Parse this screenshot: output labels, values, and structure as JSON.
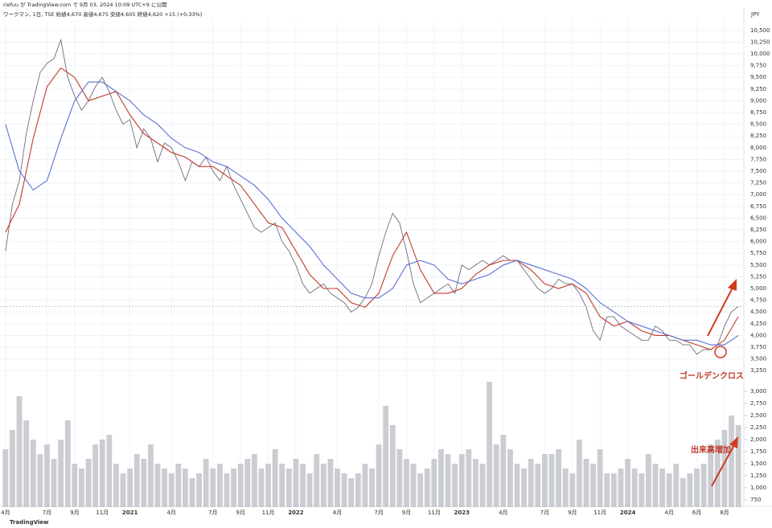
{
  "chart_data": {
    "type": "line",
    "header": "riefuu が TradingView.com で 9月 03, 2024 10:09 UTC+9 に公開",
    "title": "ワークマン, 1日, TSE  始値4,670 高値4,675 安値4,605 終値4,620 +15 (+0.33%)",
    "currency": "JPY",
    "footer": "TradingView",
    "annotations": [
      "ゴールデンクロス",
      "出来高増加"
    ],
    "grid": true,
    "xlim": [
      2.6,
      56.4
    ],
    "xticks": [
      {
        "value": 3,
        "label": "4月"
      },
      {
        "value": 6,
        "label": "7月"
      },
      {
        "value": 8,
        "label": "9月"
      },
      {
        "value": 10,
        "label": "11月"
      },
      {
        "value": 12,
        "label": "2021"
      },
      {
        "value": 15,
        "label": "4月"
      },
      {
        "value": 18,
        "label": "7月"
      },
      {
        "value": 20,
        "label": "9月"
      },
      {
        "value": 22,
        "label": "11月"
      },
      {
        "value": 24,
        "label": "2022"
      },
      {
        "value": 27,
        "label": "4月"
      },
      {
        "value": 30,
        "label": "7月"
      },
      {
        "value": 32,
        "label": "9月"
      },
      {
        "value": 34,
        "label": "11月"
      },
      {
        "value": 36,
        "label": "2023"
      },
      {
        "value": 39,
        "label": "4月"
      },
      {
        "value": 42,
        "label": "7月"
      },
      {
        "value": 44,
        "label": "9月"
      },
      {
        "value": 46,
        "label": "11月"
      },
      {
        "value": 48,
        "label": "2024"
      },
      {
        "value": 51,
        "label": "4月"
      },
      {
        "value": 53,
        "label": "6月"
      },
      {
        "value": 55,
        "label": "8月"
      }
    ],
    "ylim": [
      3100,
      10720
    ],
    "yticks": [
      {
        "value": 3250,
        "label": "3,250"
      },
      {
        "value": 3500,
        "label": "3,500"
      },
      {
        "value": 3750,
        "label": "3,750"
      },
      {
        "value": 4000,
        "label": "4,000"
      },
      {
        "value": 4250,
        "label": "4,250"
      },
      {
        "value": 4500,
        "label": "4,500"
      },
      {
        "value": 4750,
        "label": "4,750"
      },
      {
        "value": 5000,
        "label": "5,000"
      },
      {
        "value": 5250,
        "label": "5,250"
      },
      {
        "value": 5500,
        "label": "5,500"
      },
      {
        "value": 5750,
        "label": "5,750"
      },
      {
        "value": 6000,
        "label": "6,000"
      },
      {
        "value": 6250,
        "label": "6,250"
      },
      {
        "value": 6500,
        "label": "6,500"
      },
      {
        "value": 6750,
        "label": "6,750"
      },
      {
        "value": 7000,
        "label": "7,000"
      },
      {
        "value": 7250,
        "label": "7,250"
      },
      {
        "value": 7500,
        "label": "7,500"
      },
      {
        "value": 7750,
        "label": "7,750"
      },
      {
        "value": 8000,
        "label": "8,000"
      },
      {
        "value": 8250,
        "label": "8,250"
      },
      {
        "value": 8500,
        "label": "8,500"
      },
      {
        "value": 8750,
        "label": "8,750"
      },
      {
        "value": 9000,
        "label": "9,000"
      },
      {
        "value": 9250,
        "label": "9,250"
      },
      {
        "value": 9500,
        "label": "9,500"
      },
      {
        "value": 9750,
        "label": "9,750"
      },
      {
        "value": 10000,
        "label": "10,000"
      },
      {
        "value": 10250,
        "label": "10,250"
      },
      {
        "value": 10500,
        "label": "10,500"
      }
    ],
    "y2lim": [
      600,
      3300
    ],
    "y2ticks": [
      {
        "value": 750,
        "label": "750"
      },
      {
        "value": 1000,
        "label": "1,000"
      },
      {
        "value": 1250,
        "label": "1,250"
      },
      {
        "value": 1500,
        "label": "1,500"
      },
      {
        "value": 1750,
        "label": "1,750"
      },
      {
        "value": 2000,
        "label": "2,000"
      },
      {
        "value": 2250,
        "label": "2,250"
      },
      {
        "value": 2500,
        "label": "2,500"
      },
      {
        "value": 2750,
        "label": "2,750"
      },
      {
        "value": 3000,
        "label": "3,000"
      }
    ],
    "x": [
      3,
      3.5,
      4,
      4.5,
      5,
      5.5,
      6,
      6.5,
      7,
      7.5,
      8,
      8.5,
      9,
      9.5,
      10,
      10.5,
      11,
      11.5,
      12,
      12.5,
      13,
      13.5,
      14,
      14.5,
      15,
      15.5,
      16,
      16.5,
      17,
      17.5,
      18,
      18.5,
      19,
      19.5,
      20,
      20.5,
      21,
      21.5,
      22,
      22.5,
      23,
      23.5,
      24,
      24.5,
      25,
      25.5,
      26,
      26.5,
      27,
      27.5,
      28,
      28.5,
      29,
      29.5,
      30,
      30.5,
      31,
      31.5,
      32,
      32.5,
      33,
      33.5,
      34,
      34.5,
      35,
      35.5,
      36,
      36.5,
      37,
      37.5,
      38,
      38.5,
      39,
      39.5,
      40,
      40.5,
      41,
      41.5,
      42,
      42.5,
      43,
      43.5,
      44,
      44.5,
      45,
      45.5,
      46,
      46.5,
      47,
      47.5,
      48,
      48.5,
      49,
      49.5,
      50,
      50.5,
      51,
      51.5,
      52,
      52.5,
      53,
      53.5,
      54,
      54.5,
      55,
      55.5,
      56
    ],
    "series": [
      {
        "color": "#6b6f78",
        "values": [
          5800,
          6800,
          7300,
          8300,
          9000,
          9600,
          9800,
          9900,
          10300,
          9500,
          9100,
          8800,
          9000,
          9300,
          9500,
          9200,
          8800,
          8500,
          8600,
          8000,
          8400,
          8200,
          7700,
          8100,
          8000,
          7700,
          7300,
          7700,
          7600,
          7800,
          7500,
          7300,
          7600,
          7200,
          6900,
          6600,
          6300,
          6200,
          6300,
          6400,
          6000,
          5800,
          5500,
          5100,
          4900,
          5000,
          5100,
          4900,
          4800,
          4700,
          4500,
          4600,
          4800,
          5100,
          5700,
          6200,
          6600,
          6400,
          5800,
          5100,
          4700,
          4800,
          4900,
          5000,
          5100,
          4900,
          5500,
          5400,
          5500,
          5600,
          5500,
          5600,
          5700,
          5600,
          5600,
          5400,
          5200,
          5000,
          4900,
          5000,
          5200,
          5100,
          5100,
          4900,
          4600,
          4100,
          3900,
          4400,
          4400,
          4200,
          4100,
          4000,
          3900,
          3900,
          4200,
          4100,
          3900,
          3900,
          3800,
          3800,
          3600,
          3700,
          3700,
          3800,
          4200,
          4500,
          4620
        ]
      },
      {
        "color": "#c0392b",
        "x": [
          3,
          4,
          5,
          6,
          7,
          8,
          9,
          10,
          11,
          12,
          13,
          14,
          15,
          16,
          17,
          18,
          19,
          20,
          21,
          22,
          23,
          24,
          25,
          26,
          27,
          28,
          29,
          30,
          31,
          32,
          33,
          34,
          35,
          36,
          37,
          38,
          39,
          40,
          41,
          42,
          43,
          44,
          45,
          46,
          47,
          48,
          49,
          50,
          51,
          52,
          53,
          54,
          55,
          56
        ],
        "values": [
          6200,
          6800,
          8200,
          9300,
          9700,
          9500,
          9000,
          9100,
          9200,
          8700,
          8300,
          8100,
          7900,
          7800,
          7600,
          7600,
          7400,
          7200,
          6800,
          6400,
          6300,
          5800,
          5300,
          5000,
          5000,
          4700,
          4600,
          4900,
          5700,
          6200,
          5400,
          4900,
          4900,
          5000,
          5300,
          5500,
          5600,
          5600,
          5400,
          5100,
          5000,
          5100,
          4900,
          4400,
          4200,
          4300,
          4100,
          4000,
          4000,
          3900,
          3800,
          3700,
          3900,
          4400
        ]
      },
      {
        "color": "#5b6fd6",
        "x": [
          3,
          4,
          5,
          6,
          7,
          8,
          9,
          10,
          11,
          12,
          13,
          14,
          15,
          16,
          17,
          18,
          19,
          20,
          21,
          22,
          23,
          24,
          25,
          26,
          27,
          28,
          29,
          30,
          31,
          32,
          33,
          34,
          35,
          36,
          37,
          38,
          39,
          40,
          41,
          42,
          43,
          44,
          45,
          46,
          47,
          48,
          49,
          50,
          51,
          52,
          53,
          54,
          55,
          56
        ],
        "values": [
          8500,
          7500,
          7100,
          7300,
          8200,
          9000,
          9400,
          9400,
          9200,
          9000,
          8700,
          8500,
          8200,
          8000,
          7900,
          7700,
          7600,
          7400,
          7200,
          6900,
          6500,
          6200,
          5900,
          5500,
          5200,
          4900,
          4800,
          4800,
          5000,
          5500,
          5600,
          5500,
          5200,
          5100,
          5200,
          5300,
          5500,
          5600,
          5500,
          5400,
          5300,
          5200,
          5000,
          4700,
          4500,
          4300,
          4200,
          4100,
          4000,
          3900,
          3900,
          3800,
          3800,
          4000
        ]
      },
      {
        "type": "bar",
        "axis": "y2",
        "color": "#b9bcc4",
        "values": [
          1800,
          2200,
          2900,
          2400,
          2000,
          1700,
          1900,
          1600,
          2000,
          2400,
          1500,
          1400,
          1600,
          1900,
          2000,
          2100,
          1500,
          1300,
          1400,
          1700,
          1600,
          1900,
          1500,
          1400,
          1300,
          1500,
          1400,
          1200,
          1300,
          1600,
          1400,
          1500,
          1300,
          1400,
          1500,
          1600,
          1700,
          1400,
          1500,
          1800,
          1500,
          1400,
          1600,
          1500,
          1300,
          1700,
          1500,
          1600,
          1400,
          1300,
          1200,
          1300,
          1500,
          1400,
          1900,
          2700,
          2300,
          1800,
          1600,
          1500,
          1300,
          1400,
          1600,
          1800,
          1700,
          1500,
          1700,
          1800,
          1600,
          1500,
          3200,
          1900,
          2100,
          1800,
          1500,
          1400,
          1600,
          1500,
          1700,
          1700,
          1800,
          1400,
          1300,
          2000,
          1600,
          1500,
          1800,
          1300,
          1300,
          1400,
          1600,
          1400,
          1300,
          1700,
          1500,
          1400,
          1300,
          1500,
          1200,
          1300,
          1400,
          1500,
          1900,
          2000,
          2200,
          2500,
          2300
        ]
      }
    ]
  }
}
